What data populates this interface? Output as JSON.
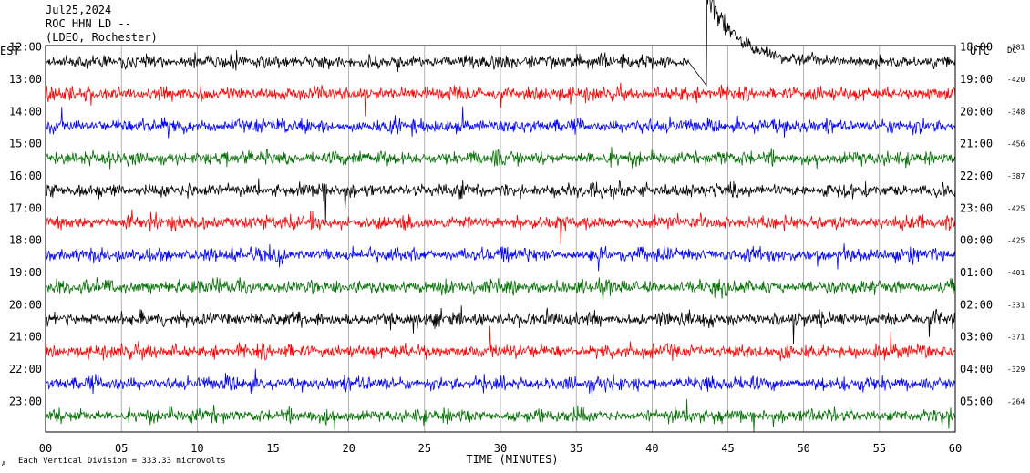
{
  "header": {
    "date": "Jul25,2024",
    "station": "ROC HHN LD --",
    "network": "(LDEO, Rochester)"
  },
  "chart_data": {
    "type": "line",
    "title": "Jul25,2024 ROC HHN LD --",
    "xlabel": "TIME (MINUTES)",
    "xlim": [
      0,
      60
    ],
    "x_ticks": [
      "00",
      "05",
      "10",
      "15",
      "20",
      "25",
      "30",
      "35",
      "40",
      "45",
      "50",
      "55",
      "60"
    ],
    "left_axis_label": "EST",
    "right_axis_label": "UTC",
    "dc_label": "DC",
    "grid": true,
    "scale_note": "Each Vertical Division =  333.33 microvolts",
    "corner_mark": "A",
    "colors": [
      "#000000",
      "#ff0000",
      "#0000ff",
      "#007000"
    ],
    "rows": [
      {
        "est": "12:00",
        "utc": "18:00",
        "dc": "-381",
        "color": "#000000",
        "event": {
          "minute": 43.8,
          "peak_divisions": 2.0
        }
      },
      {
        "est": "13:00",
        "utc": "19:00",
        "dc": "-420",
        "color": "#ff0000"
      },
      {
        "est": "14:00",
        "utc": "20:00",
        "dc": "-348",
        "color": "#0000ff"
      },
      {
        "est": "15:00",
        "utc": "21:00",
        "dc": "-456",
        "color": "#007000"
      },
      {
        "est": "16:00",
        "utc": "22:00",
        "dc": "-387",
        "color": "#000000"
      },
      {
        "est": "17:00",
        "utc": "23:00",
        "dc": "-425",
        "color": "#ff0000"
      },
      {
        "est": "18:00",
        "utc": "00:00",
        "dc": "-425",
        "color": "#0000ff"
      },
      {
        "est": "19:00",
        "utc": "01:00",
        "dc": "-401",
        "color": "#007000"
      },
      {
        "est": "20:00",
        "utc": "02:00",
        "dc": "-331",
        "color": "#000000"
      },
      {
        "est": "21:00",
        "utc": "03:00",
        "dc": "-371",
        "color": "#ff0000"
      },
      {
        "est": "22:00",
        "utc": "04:00",
        "dc": "-329",
        "color": "#0000ff"
      },
      {
        "est": "23:00",
        "utc": "05:00",
        "dc": "-264",
        "color": "#007000"
      }
    ]
  }
}
